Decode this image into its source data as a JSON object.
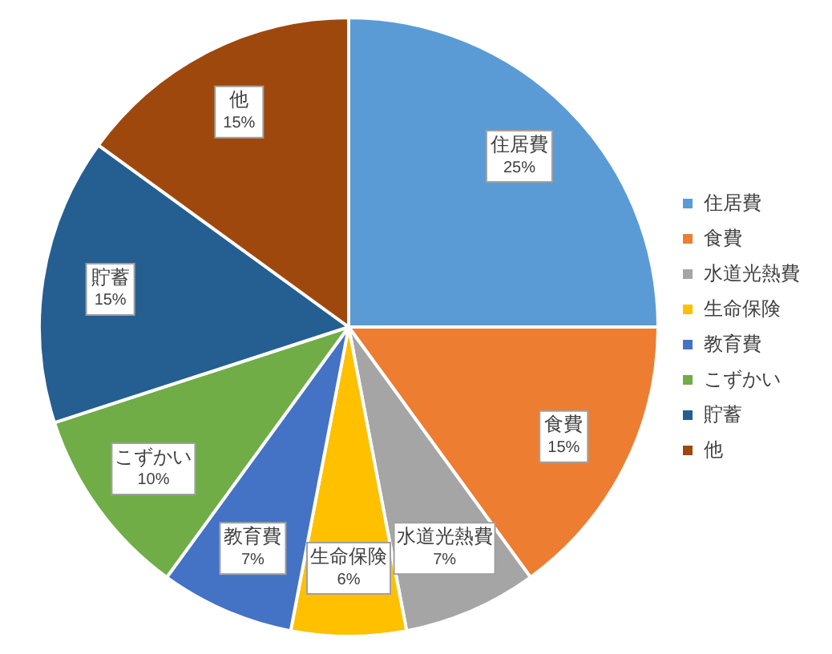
{
  "chart_data": {
    "type": "pie",
    "categories": [
      "住居費",
      "食費",
      "水道光熱費",
      "生命保険",
      "教育費",
      "こずかい",
      "貯蓄",
      "他"
    ],
    "values": [
      25,
      15,
      7,
      6,
      7,
      10,
      15,
      15
    ],
    "value_labels": [
      "25%",
      "15%",
      "7%",
      "6%",
      "7%",
      "10%",
      "15%",
      "15%"
    ],
    "colors": [
      "#5b9bd5",
      "#ed7d31",
      "#a5a5a5",
      "#ffc000",
      "#4472c4",
      "#70ad47",
      "#255e91",
      "#9e480e"
    ],
    "legend": "right"
  }
}
